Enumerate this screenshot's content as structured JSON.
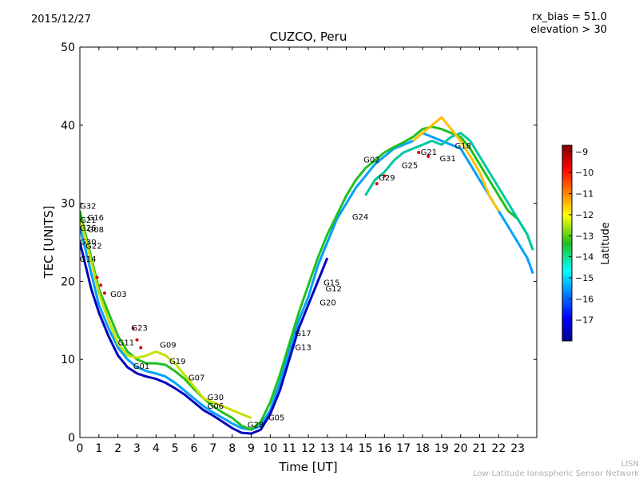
{
  "chart_data": {
    "type": "scatter",
    "title": "CUZCO, Peru",
    "date_label": "2015/12/27",
    "params": [
      "rx_bias = 51.0",
      "elevation > 30"
    ],
    "xlabel": "Time [UT]",
    "ylabel": "TEC [UNITS]",
    "xlim": [
      0,
      24
    ],
    "ylim": [
      0,
      50
    ],
    "xticks": [
      0,
      1,
      2,
      3,
      4,
      5,
      6,
      7,
      8,
      9,
      10,
      11,
      12,
      13,
      14,
      15,
      16,
      17,
      18,
      19,
      20,
      21,
      22,
      23
    ],
    "yticks": [
      0,
      10,
      20,
      30,
      40,
      50
    ],
    "grid": false,
    "colorbar": {
      "label": "Latitude",
      "range": [
        -18,
        -8.7
      ],
      "ticks": [
        -9,
        -10,
        -11,
        -12,
        -13,
        -14,
        -15,
        -16,
        -17
      ],
      "tick_labels": [
        "−9",
        "−10",
        "−11",
        "−12",
        "−13",
        "−14",
        "−15",
        "−16",
        "−17"
      ],
      "colormap": "jet"
    },
    "satellite_labels": [
      {
        "name": "G32",
        "x": 0.0,
        "y": 29.3
      },
      {
        "name": "G16",
        "x": 0.4,
        "y": 27.8
      },
      {
        "name": "G21",
        "x": 0.0,
        "y": 27.5
      },
      {
        "name": "G26",
        "x": 0.0,
        "y": 26.5
      },
      {
        "name": "G08",
        "x": 0.4,
        "y": 26.3
      },
      {
        "name": "G30",
        "x": 0.0,
        "y": 24.7
      },
      {
        "name": "G22",
        "x": 0.3,
        "y": 24.2
      },
      {
        "name": "G14",
        "x": 0.0,
        "y": 22.5
      },
      {
        "name": "G03",
        "x": 1.6,
        "y": 18.0
      },
      {
        "name": "G23",
        "x": 2.7,
        "y": 13.7
      },
      {
        "name": "G11",
        "x": 2.0,
        "y": 11.8
      },
      {
        "name": "G09",
        "x": 4.2,
        "y": 11.5
      },
      {
        "name": "G19",
        "x": 4.7,
        "y": 9.4
      },
      {
        "name": "G01",
        "x": 2.8,
        "y": 8.8
      },
      {
        "name": "G07",
        "x": 5.7,
        "y": 7.3
      },
      {
        "name": "G30",
        "x": 6.7,
        "y": 4.8
      },
      {
        "name": "G06",
        "x": 6.7,
        "y": 3.7
      },
      {
        "name": "G05",
        "x": 9.9,
        "y": 2.2
      },
      {
        "name": "G28",
        "x": 8.8,
        "y": 1.3
      },
      {
        "name": "G17",
        "x": 11.3,
        "y": 13.0
      },
      {
        "name": "G13",
        "x": 11.3,
        "y": 11.2
      },
      {
        "name": "G15",
        "x": 12.8,
        "y": 19.5
      },
      {
        "name": "G12",
        "x": 12.9,
        "y": 18.7
      },
      {
        "name": "G20",
        "x": 12.6,
        "y": 16.9
      },
      {
        "name": "G24",
        "x": 14.3,
        "y": 27.9
      },
      {
        "name": "G02",
        "x": 14.9,
        "y": 35.2
      },
      {
        "name": "G29",
        "x": 15.7,
        "y": 32.9
      },
      {
        "name": "G25",
        "x": 16.9,
        "y": 34.5
      },
      {
        "name": "G21",
        "x": 17.9,
        "y": 36.2
      },
      {
        "name": "G31",
        "x": 18.9,
        "y": 35.4
      },
      {
        "name": "G18",
        "x": 19.7,
        "y": 37.0
      }
    ],
    "series": [
      {
        "name": "track-1",
        "color": "#00a0ff",
        "x": [
          0,
          0.3,
          0.6,
          1.0,
          1.5,
          2.0,
          2.5,
          3.0,
          3.5,
          4.0,
          4.5,
          5.0,
          5.5,
          6.0,
          6.5,
          7.0,
          7.5,
          8.0,
          8.5,
          9.0,
          9.5,
          10.0,
          10.5,
          11.0,
          11.5,
          12.0,
          12.5,
          13.0,
          13.5,
          14.0,
          14.5,
          15.0,
          15.5,
          16.0,
          16.5,
          17.0,
          17.5,
          18.0,
          18.5,
          19.0,
          19.5,
          20.0,
          20.5,
          21.0,
          21.5,
          22.0,
          22.5,
          23.0,
          23.5,
          23.8
        ],
        "y": [
          27,
          24,
          21,
          17,
          14,
          11.5,
          10,
          9,
          8.5,
          8.2,
          7.8,
          7,
          6,
          5,
          4,
          3.2,
          2.5,
          1.8,
          1.2,
          1.0,
          1.5,
          3.5,
          7,
          11,
          15,
          18,
          22,
          25,
          28,
          30,
          32,
          33.5,
          35,
          36,
          37,
          37.5,
          38,
          39,
          38.5,
          38,
          37.5,
          37,
          35,
          33,
          31,
          29,
          27,
          25,
          23,
          21
        ]
      },
      {
        "name": "track-2",
        "color": "#20c020",
        "x": [
          0,
          0.3,
          0.6,
          1.0,
          1.5,
          2.0,
          2.5,
          3.0,
          3.5,
          4.0,
          4.5,
          5.0,
          5.5,
          6.0,
          6.5,
          7.0,
          7.5,
          8.0,
          8.5,
          9.0,
          9.5,
          10.0,
          10.5,
          11.0,
          11.5,
          12.0,
          12.5,
          13.0,
          13.5,
          14.0,
          14.5,
          15.0,
          15.5,
          16.0,
          16.5,
          17.0,
          17.5,
          18.0,
          18.5,
          19.0,
          19.5,
          20.0,
          20.5,
          21.0,
          21.5,
          22.0,
          22.5,
          23.0,
          23.5,
          23.8
        ],
        "y": [
          29,
          26,
          23,
          19,
          16,
          13,
          11,
          10,
          9.5,
          9.5,
          9.3,
          8.5,
          7.5,
          6.2,
          5.0,
          4.0,
          3.2,
          2.5,
          1.5,
          1.0,
          2.0,
          4.5,
          8,
          12,
          16,
          19.5,
          23,
          26,
          28.5,
          31,
          33,
          34.5,
          35.5,
          36.5,
          37.2,
          37.8,
          38.5,
          39.5,
          39.8,
          39.5,
          39,
          38.5,
          37,
          35,
          33,
          31,
          29,
          28,
          26,
          24
        ]
      },
      {
        "name": "track-3",
        "color": "#0000c0",
        "x": [
          0,
          0.3,
          0.6,
          1.0,
          1.5,
          2.0,
          2.5,
          3.0,
          3.5,
          4.0,
          4.5,
          5.0,
          5.5,
          6.0,
          6.5,
          7.0,
          7.5,
          8.0,
          8.5,
          9.0,
          9.5,
          10.0,
          10.5,
          11.0,
          11.5,
          12.0,
          12.5,
          13.0
        ],
        "y": [
          25,
          22,
          19,
          16,
          13,
          10.5,
          9,
          8.2,
          7.8,
          7.5,
          7.0,
          6.3,
          5.5,
          4.5,
          3.5,
          2.8,
          2.0,
          1.2,
          0.6,
          0.5,
          1.0,
          3,
          6,
          10,
          14,
          17,
          20,
          23
        ]
      },
      {
        "name": "track-4",
        "color": "#c8e000",
        "x": [
          0,
          0.3,
          0.6,
          1.0,
          1.5,
          2.0,
          2.5,
          3.0,
          3.5,
          4.0,
          4.5,
          5.0,
          5.5,
          6.0,
          6.5,
          7.0,
          7.5,
          8.0,
          8.5,
          9.0
        ],
        "y": [
          28,
          25.5,
          22.5,
          18.5,
          15,
          12,
          10.5,
          10.2,
          10.5,
          11,
          10.5,
          9.5,
          8,
          6.5,
          5,
          4.5,
          4.0,
          3.5,
          3.0,
          2.5
        ]
      },
      {
        "name": "track-5",
        "color": "#00c8a0",
        "x": [
          15.0,
          15.5,
          16.0,
          16.5,
          17.0,
          17.5,
          18.0,
          18.5,
          19.0,
          19.5,
          20.0,
          20.5,
          21.0,
          21.5,
          22.0,
          22.5,
          23.0,
          23.5,
          23.8
        ],
        "y": [
          31,
          33,
          34,
          35.5,
          36.5,
          37,
          37.5,
          38,
          37.5,
          38.5,
          39,
          38,
          36,
          34,
          32,
          30,
          28,
          26,
          24
        ]
      },
      {
        "name": "track-6",
        "color": "#ffc000",
        "x": [
          17.5,
          18.0,
          18.5,
          19.0,
          19.5,
          20.0,
          20.5,
          21.0,
          21.5,
          22.0
        ],
        "y": [
          38,
          39,
          40,
          41,
          39.5,
          38,
          36,
          34,
          31,
          29
        ]
      },
      {
        "name": "track-7",
        "color": "#e00000",
        "x": [
          0.9,
          1.1,
          1.3,
          2.8,
          3.0,
          3.2,
          15.6,
          16.0,
          17.8,
          18.3
        ],
        "y": [
          20.5,
          19.5,
          18.5,
          14,
          12.5,
          11.5,
          32.5,
          33.5,
          36.5,
          36.0
        ]
      }
    ]
  },
  "footer": {
    "line1": "LISN",
    "line2": "Low-Latitude Ionospheric Sensor Network"
  }
}
